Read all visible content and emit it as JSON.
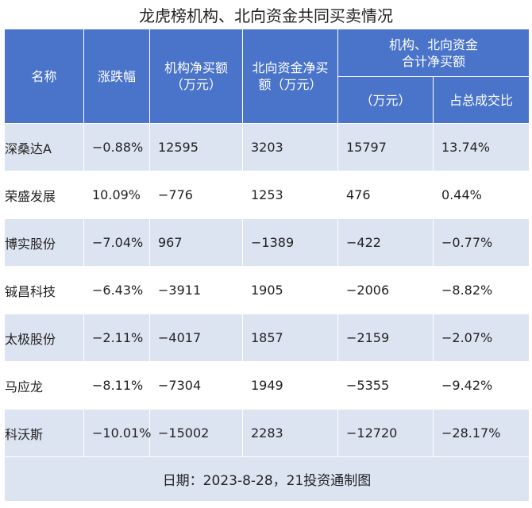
{
  "title": "龙虎榜机构、北向资金共同买卖情况",
  "headers": {
    "name": "名称",
    "change": "涨跌幅",
    "inst_line1": "机构净买额",
    "inst_line2": "（万元）",
    "north_line1": "北向资金净买",
    "north_line2": "额（万元）",
    "combined_line1": "机构、北向资金",
    "combined_line2": "合计净买额",
    "combined_unit": "（万元）",
    "share": "占总成交比"
  },
  "rows": [
    {
      "name": "深桑达A",
      "change": "−0.88%",
      "inst": "12595",
      "north": "3203",
      "total": "15797",
      "share": "13.74%"
    },
    {
      "name": "荣盛发展",
      "change": "10.09%",
      "inst": "−776",
      "north": "1253",
      "total": "476",
      "share": "0.44%"
    },
    {
      "name": "博实股份",
      "change": "−7.04%",
      "inst": "967",
      "north": "−1389",
      "total": "−422",
      "share": "−0.77%"
    },
    {
      "name": "铖昌科技",
      "change": "−6.43%",
      "inst": "−3911",
      "north": "1905",
      "total": "−2006",
      "share": "−8.82%"
    },
    {
      "name": "太极股份",
      "change": "−2.11%",
      "inst": "−4017",
      "north": "1857",
      "total": "−2159",
      "share": "−2.07%"
    },
    {
      "name": "马应龙",
      "change": "−8.11%",
      "inst": "−7304",
      "north": "1949",
      "total": "−5355",
      "share": "−9.42%"
    },
    {
      "name": "科沃斯",
      "change": "−10.01%",
      "inst": "−15002",
      "north": "2283",
      "total": "−12720",
      "share": "−28.17%"
    }
  ],
  "footer": "日期：2023-8-28，21投资通制图",
  "colors": {
    "header_bg": "#4a74c9",
    "stripe": "#dde4f1"
  }
}
